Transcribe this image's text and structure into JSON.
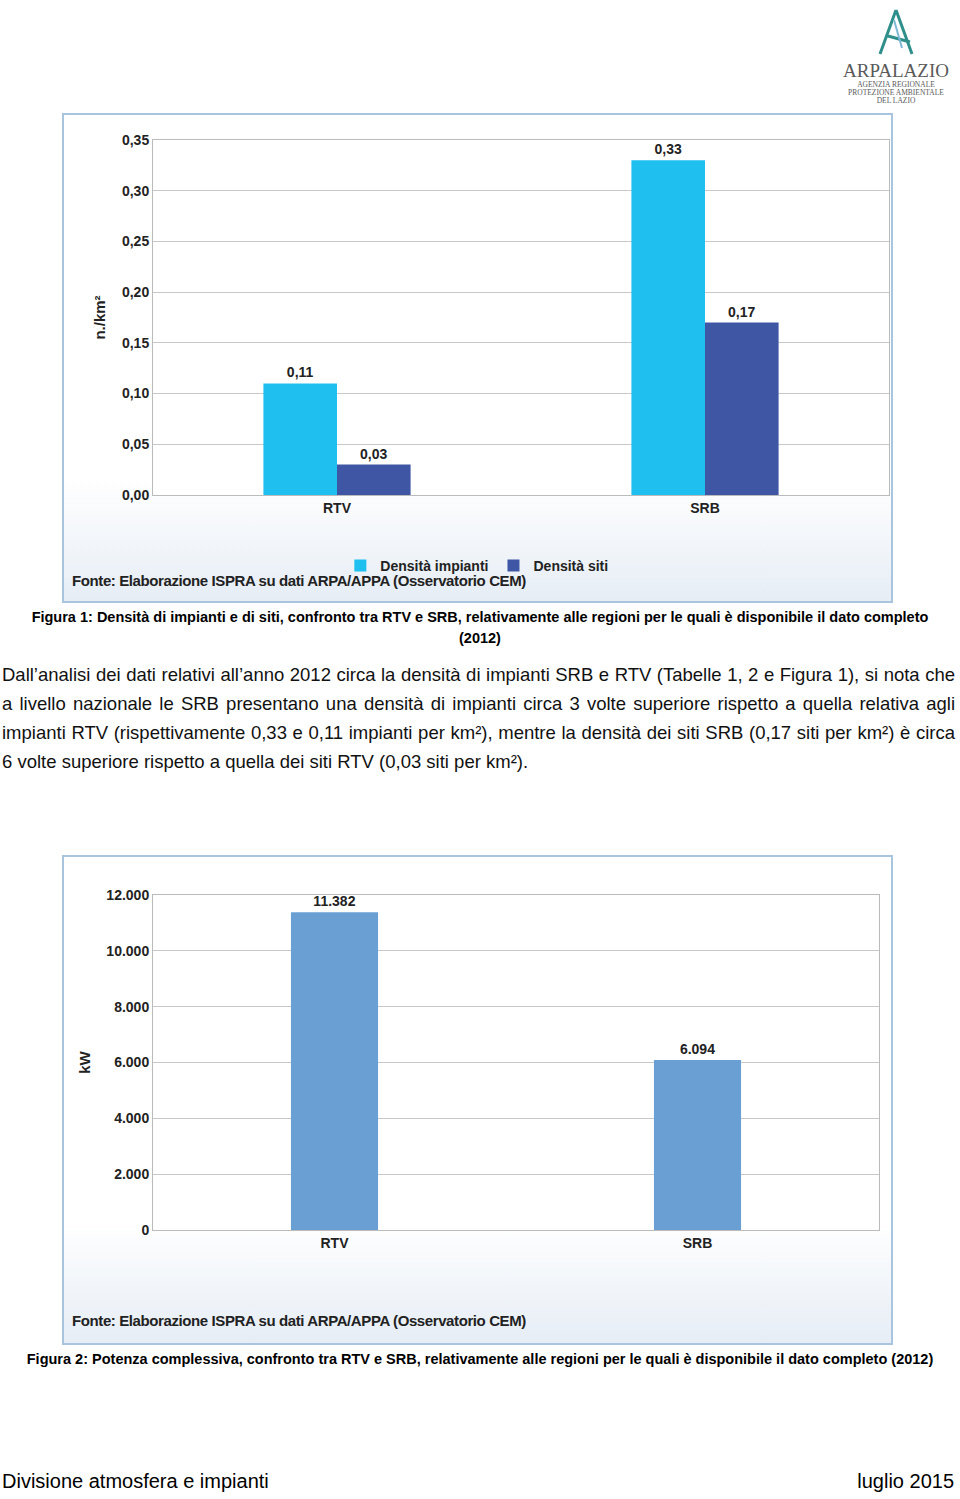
{
  "chart_data": [
    {
      "type": "bar",
      "categories": [
        "RTV",
        "SRB"
      ],
      "series": [
        {
          "name": "Densità impianti",
          "color": "#1fbff0",
          "values": [
            0.11,
            0.33
          ],
          "value_labels": [
            "0,11",
            "0,33"
          ]
        },
        {
          "name": "Densità siti",
          "color": "#3f56a5",
          "values": [
            0.03,
            0.17
          ],
          "value_labels": [
            "0,03",
            "0,17"
          ]
        }
      ],
      "y_label": "n./km²",
      "ylim": [
        0,
        0.35
      ],
      "yticks": [
        {
          "value": 0,
          "label": "0,00"
        },
        {
          "value": 0.05,
          "label": "0,05"
        },
        {
          "value": 0.1,
          "label": "0,10"
        },
        {
          "value": 0.15,
          "label": "0,15"
        },
        {
          "value": 0.2,
          "label": "0,20"
        },
        {
          "value": 0.25,
          "label": "0,25"
        },
        {
          "value": 0.3,
          "label": "0,30"
        },
        {
          "value": 0.35,
          "label": "0,35"
        }
      ],
      "grid": true,
      "legend": "bottom",
      "data_labels": true,
      "annotations": [
        "Fonte: Elaborazione ISPRA su dati ARPA/APPA (Osservatorio CEM)"
      ]
    },
    {
      "type": "bar",
      "categories": [
        "RTV",
        "SRB"
      ],
      "values": [
        11382,
        6094
      ],
      "value_labels": [
        "11.382",
        "6.094"
      ],
      "color": "#6a9fd4",
      "y_label": "kW",
      "ylim": [
        0,
        12000
      ],
      "yticks": [
        0,
        {
          "value": 2000,
          "label": "2.000"
        },
        {
          "value": 4000,
          "label": "4.000"
        },
        {
          "value": 6000,
          "label": "6.000"
        },
        {
          "value": 8000,
          "label": "8.000"
        },
        {
          "value": 10000,
          "label": "10.000"
        },
        {
          "value": 12000,
          "label": "12.000"
        }
      ],
      "grid": true,
      "data_labels": true,
      "annotations": [
        "Fonte: Elaborazione ISPRA su dati ARPA/APPA (Osservatorio CEM)"
      ]
    }
  ],
  "page": {
    "logo": {
      "name": "ARPALAZIO",
      "lines": [
        "AGENZIA REGIONALE",
        "PROTEZIONE AMBIENTALE",
        "DEL LAZIO"
      ]
    },
    "captions": [
      "Figura 1: Densità di impianti e di siti, confronto tra RTV e SRB, relativamente alle regioni per le quali è disponibile il dato completo (2012)",
      "Figura 2: Potenza complessiva, confronto tra RTV e SRB, relativamente alle regioni per le quali è disponibile il dato completo (2012)"
    ],
    "paragraph": "Dall’analisi dei dati relativi all’anno 2012 circa la densità di impianti SRB e RTV (Tabelle 1, 2 e Figura 1), si nota che a livello nazionale le SRB presentano una densità di impianti circa 3 volte superiore rispetto a quella relativa agli impianti RTV (rispettivamente 0,33 e 0,11 impianti per km²), mentre la densità dei siti SRB (0,17 siti per km²) è circa 6 volte superiore rispetto a quella dei siti RTV (0,03 siti per km²).",
    "footer": {
      "left": "Divisione atmosfera e impianti",
      "right": "luglio 2015"
    }
  }
}
